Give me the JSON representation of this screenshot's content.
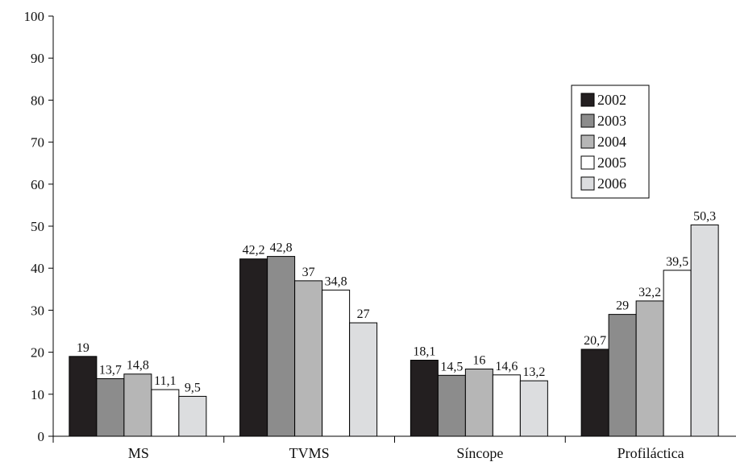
{
  "chart_data": {
    "type": "bar",
    "title": "",
    "xlabel": "",
    "ylabel": "",
    "ylim": [
      0,
      100
    ],
    "yticks": [
      0,
      10,
      20,
      30,
      40,
      50,
      60,
      70,
      80,
      90,
      100
    ],
    "categories": [
      "MS",
      "TVMS",
      "Síncope",
      "Profiláctica"
    ],
    "series": [
      {
        "name": "2002",
        "color": "#231f20",
        "values": [
          19,
          42.2,
          18.1,
          20.7
        ],
        "labels": [
          "19",
          "42,2",
          "18,1",
          "20,7"
        ]
      },
      {
        "name": "2003",
        "color": "#8c8c8c",
        "values": [
          13.7,
          42.8,
          14.5,
          29
        ],
        "labels": [
          "13,7",
          "42,8",
          "14,5",
          "29"
        ]
      },
      {
        "name": "2004",
        "color": "#b6b6b6",
        "values": [
          14.8,
          37,
          16,
          32.2
        ],
        "labels": [
          "14,8",
          "37",
          "16",
          "32,2"
        ]
      },
      {
        "name": "2005",
        "color": "#ffffff",
        "values": [
          11.1,
          34.8,
          14.6,
          39.5
        ],
        "labels": [
          "11,1",
          "34,8",
          "14,6",
          "39,5"
        ]
      },
      {
        "name": "2006",
        "color": "#dcdddf",
        "values": [
          9.5,
          27,
          13.2,
          50.3
        ],
        "labels": [
          "9,5",
          "27",
          "13,2",
          "50,3"
        ]
      }
    ],
    "legend_position": "right",
    "grid": false
  }
}
